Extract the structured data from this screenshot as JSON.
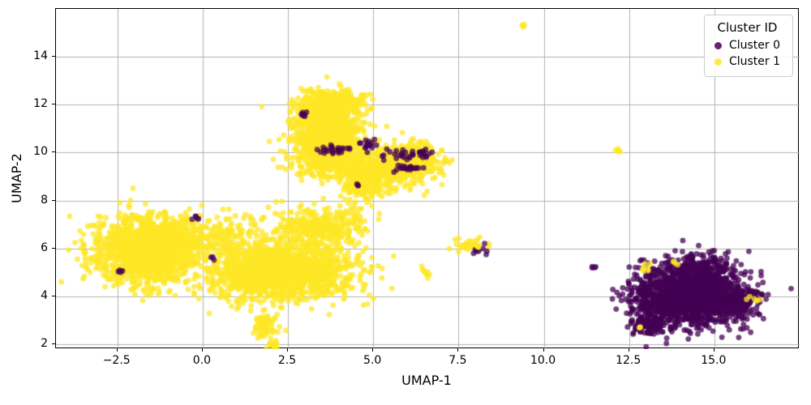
{
  "chart_data": {
    "type": "scatter",
    "title": "",
    "xlabel": "UMAP-1",
    "ylabel": "UMAP-2",
    "xlim": [
      -4.3,
      17.5
    ],
    "ylim": [
      1.8,
      16.0
    ],
    "xticks": [
      -2.5,
      0.0,
      2.5,
      5.0,
      7.5,
      10.0,
      12.5,
      15.0
    ],
    "xtick_labels": [
      "−2.5",
      "0.0",
      "2.5",
      "5.0",
      "7.5",
      "10.0",
      "12.5",
      "15.0"
    ],
    "yticks": [
      2,
      4,
      6,
      8,
      10,
      12,
      14
    ],
    "ytick_labels": [
      "2",
      "4",
      "6",
      "8",
      "10",
      "12",
      "14"
    ],
    "grid": true,
    "grid_color": "#b0b0b0",
    "legend": {
      "title": "Cluster ID",
      "position": "upper right",
      "entries": [
        {
          "label": "Cluster 0",
          "color": "#440154"
        },
        {
          "label": "Cluster 1",
          "color": "#fde725"
        }
      ]
    },
    "series": [
      {
        "name": "Cluster 0",
        "color": "#440154"
      },
      {
        "name": "Cluster 1",
        "color": "#fde725"
      }
    ],
    "point_alpha": 0.75,
    "point_radius": 3.4,
    "blobs": [
      {
        "c": 1,
        "x": -1.7,
        "y": 5.9,
        "sx": 0.75,
        "sy": 0.7,
        "n": 1300
      },
      {
        "c": 1,
        "x": -0.9,
        "y": 6.4,
        "sx": 0.45,
        "sy": 0.5,
        "n": 250
      },
      {
        "c": 1,
        "x": 2.6,
        "y": 5.1,
        "sx": 0.95,
        "sy": 0.6,
        "n": 1400
      },
      {
        "c": 1,
        "x": 1.2,
        "y": 4.9,
        "sx": 0.5,
        "sy": 0.5,
        "n": 300
      },
      {
        "c": 1,
        "x": 3.4,
        "y": 6.9,
        "sx": 0.75,
        "sy": 0.35,
        "n": 350
      },
      {
        "c": 1,
        "x": 0.6,
        "y": 6.5,
        "sx": 0.55,
        "sy": 0.45,
        "n": 130
      },
      {
        "c": 1,
        "x": 3.6,
        "y": 11.0,
        "sx": 0.55,
        "sy": 0.7,
        "n": 800
      },
      {
        "c": 1,
        "x": 3.7,
        "y": 12.1,
        "sx": 0.45,
        "sy": 0.25,
        "n": 250
      },
      {
        "c": 1,
        "x": 3.9,
        "y": 9.7,
        "sx": 0.6,
        "sy": 0.4,
        "n": 350
      },
      {
        "c": 1,
        "x": 5.2,
        "y": 9.2,
        "sx": 0.6,
        "sy": 0.4,
        "n": 400
      },
      {
        "c": 1,
        "x": 6.2,
        "y": 9.7,
        "sx": 0.4,
        "sy": 0.35,
        "n": 300
      },
      {
        "c": 1,
        "x": 4.7,
        "y": 8.6,
        "sx": 0.3,
        "sy": 0.3,
        "n": 120
      },
      {
        "c": 1,
        "x": 1.85,
        "y": 2.8,
        "sx": 0.2,
        "sy": 0.3,
        "n": 70
      },
      {
        "c": 1,
        "x": 2.05,
        "y": 1.95,
        "sx": 0.12,
        "sy": 0.1,
        "n": 12
      },
      {
        "c": 1,
        "x": 4.5,
        "y": 7.5,
        "sx": 0.12,
        "sy": 0.12,
        "n": 10
      },
      {
        "c": 1,
        "x": 7.7,
        "y": 6.15,
        "sx": 0.3,
        "sy": 0.12,
        "n": 30
      },
      {
        "c": 1,
        "x": 6.6,
        "y": 5.05,
        "sx": 0.1,
        "sy": 0.08,
        "n": 8
      },
      {
        "c": 1,
        "x": 9.4,
        "y": 15.3,
        "sx": 0.05,
        "sy": 0.05,
        "n": 4
      },
      {
        "c": 1,
        "x": 12.2,
        "y": 10.1,
        "sx": 0.06,
        "sy": 0.06,
        "n": 5
      },
      {
        "c": 0,
        "x": 14.3,
        "y": 4.0,
        "sx": 0.75,
        "sy": 0.55,
        "n": 1700
      },
      {
        "c": 0,
        "x": 14.6,
        "y": 5.2,
        "sx": 0.5,
        "sy": 0.3,
        "n": 200
      },
      {
        "c": 0,
        "x": 15.6,
        "y": 3.8,
        "sx": 0.4,
        "sy": 0.3,
        "n": 200
      },
      {
        "c": 0,
        "x": 12.95,
        "y": 3.8,
        "sx": 0.12,
        "sy": 0.85,
        "n": 100
      },
      {
        "c": 0,
        "x": 13.2,
        "y": 2.75,
        "sx": 0.3,
        "sy": 0.15,
        "n": 90
      },
      {
        "c": 0,
        "x": 3.0,
        "y": 11.6,
        "sx": 0.08,
        "sy": 0.1,
        "n": 8
      },
      {
        "c": 0,
        "x": 4.0,
        "y": 10.1,
        "sx": 0.35,
        "sy": 0.08,
        "n": 25
      },
      {
        "c": 0,
        "x": 4.9,
        "y": 10.4,
        "sx": 0.15,
        "sy": 0.12,
        "n": 15
      },
      {
        "c": 0,
        "x": 5.8,
        "y": 9.9,
        "sx": 0.3,
        "sy": 0.15,
        "n": 25
      },
      {
        "c": 0,
        "x": 5.95,
        "y": 9.35,
        "sx": 0.2,
        "sy": 0.1,
        "n": 20
      },
      {
        "c": 0,
        "x": 6.55,
        "y": 9.95,
        "sx": 0.12,
        "sy": 0.1,
        "n": 10
      },
      {
        "c": 0,
        "x": -2.45,
        "y": 5.05,
        "sx": 0.06,
        "sy": 0.05,
        "n": 4
      },
      {
        "c": 0,
        "x": -0.25,
        "y": 7.3,
        "sx": 0.08,
        "sy": 0.07,
        "n": 5
      },
      {
        "c": 0,
        "x": 0.3,
        "y": 5.6,
        "sx": 0.05,
        "sy": 0.05,
        "n": 3
      },
      {
        "c": 0,
        "x": 8.15,
        "y": 5.95,
        "sx": 0.12,
        "sy": 0.1,
        "n": 10
      },
      {
        "c": 0,
        "x": 11.5,
        "y": 5.2,
        "sx": 0.06,
        "sy": 0.06,
        "n": 4
      },
      {
        "c": 0,
        "x": 12.7,
        "y": 2.7,
        "sx": 0.08,
        "sy": 0.06,
        "n": 6
      },
      {
        "c": 0,
        "x": 4.55,
        "y": 8.6,
        "sx": 0.05,
        "sy": 0.05,
        "n": 3
      },
      {
        "c": 1,
        "x": 13.0,
        "y": 5.2,
        "sx": 0.1,
        "sy": 0.12,
        "n": 8
      },
      {
        "c": 1,
        "x": 13.85,
        "y": 5.4,
        "sx": 0.07,
        "sy": 0.07,
        "n": 4
      },
      {
        "c": 1,
        "x": 16.2,
        "y": 3.85,
        "sx": 0.08,
        "sy": 0.08,
        "n": 6
      },
      {
        "c": 1,
        "x": 12.85,
        "y": 2.7,
        "sx": 0.06,
        "sy": 0.05,
        "n": 3
      },
      {
        "c": 1,
        "x": 8.0,
        "y": 6.1,
        "sx": 0.1,
        "sy": 0.08,
        "n": 6
      }
    ]
  }
}
